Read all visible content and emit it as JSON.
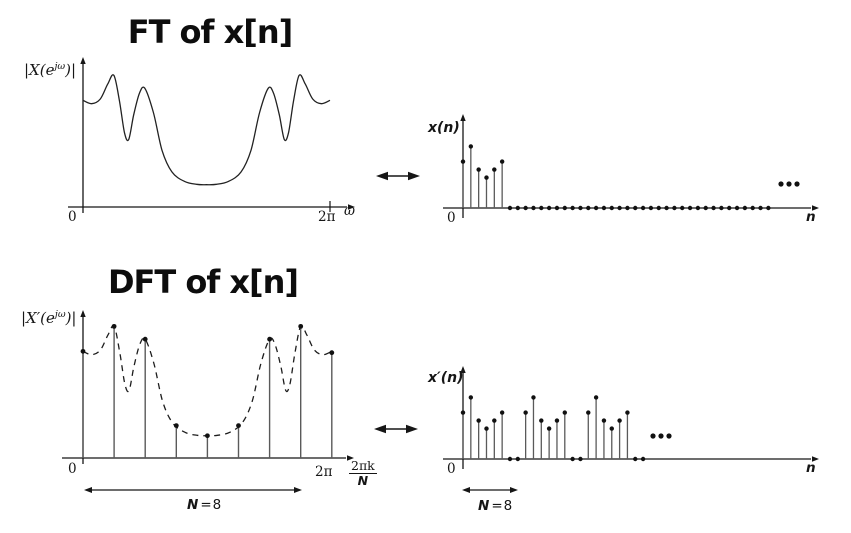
{
  "titles": {
    "ft": "FT of x[n]",
    "dft": "DFT of x[n]"
  },
  "labels": {
    "zero": "0",
    "two_pi": "2π",
    "omega": "ω",
    "n": "n",
    "ft_ylabel_pre": "|X(e",
    "dft_ylabel_pre": "|X′(e",
    "ylabel_sup": "jω",
    "ylabel_post": ")|",
    "xn": "x(n)",
    "xpn": "x′(n)",
    "frac_num": "2πk",
    "frac_den": "N",
    "n_symbol": "N",
    "n_equals": "=8"
  },
  "colors": {
    "ink": "#161616",
    "stem": "#5a5a5a",
    "dot": "#111111",
    "background": "#ffffff"
  },
  "chart_data": [
    {
      "id": "ft",
      "type": "line",
      "title": "FT of x[n]",
      "ylabel": "|X(e^jω)|",
      "xlabel": "ω",
      "x_range": [
        0,
        "2π"
      ],
      "x_ticks": [
        "0",
        "2π"
      ],
      "grid": false,
      "curve_x_normalized_0_to_2pi": true,
      "curve": [
        [
          0,
          0.79
        ],
        [
          0.035,
          0.765
        ],
        [
          0.07,
          0.8
        ],
        [
          0.1,
          0.91
        ],
        [
          0.125,
          0.975
        ],
        [
          0.148,
          0.78
        ],
        [
          0.168,
          0.55
        ],
        [
          0.185,
          0.5
        ],
        [
          0.205,
          0.68
        ],
        [
          0.228,
          0.84
        ],
        [
          0.25,
          0.88
        ],
        [
          0.285,
          0.7
        ],
        [
          0.32,
          0.42
        ],
        [
          0.36,
          0.26
        ],
        [
          0.41,
          0.19
        ],
        [
          0.46,
          0.168
        ],
        [
          0.5,
          0.165
        ],
        [
          0.54,
          0.168
        ],
        [
          0.59,
          0.19
        ],
        [
          0.64,
          0.26
        ],
        [
          0.68,
          0.42
        ],
        [
          0.715,
          0.7
        ],
        [
          0.75,
          0.88
        ],
        [
          0.772,
          0.84
        ],
        [
          0.795,
          0.68
        ],
        [
          0.815,
          0.5
        ],
        [
          0.832,
          0.55
        ],
        [
          0.852,
          0.78
        ],
        [
          0.875,
          0.975
        ],
        [
          0.9,
          0.91
        ],
        [
          0.93,
          0.8
        ],
        [
          0.965,
          0.765
        ],
        [
          1,
          0.79
        ]
      ]
    },
    {
      "id": "xn",
      "type": "stem",
      "ylabel": "x(n)",
      "xlabel": "n",
      "x_ticks": [
        "0"
      ],
      "values": [
        0.58,
        0.77,
        0.48,
        0.38,
        0.48,
        0.58
      ],
      "zero_samples": {
        "from_n": 6,
        "count": 34
      },
      "ellipsis": true
    },
    {
      "id": "dft",
      "type": "stem-with-dashed-envelope",
      "title": "DFT of x[n]",
      "ylabel": "|X′(e^jω)|",
      "xlabel": "2πk/N",
      "x_ticks": [
        "0",
        "2π"
      ],
      "N": 8,
      "k": [
        0,
        1,
        2,
        3,
        4,
        5,
        6,
        7,
        8
      ],
      "k_values": [
        0.79,
        0.975,
        0.88,
        0.24,
        0.165,
        0.24,
        0.88,
        0.975,
        0.78
      ],
      "envelope": "ft",
      "span_label": "N=8",
      "span_samples": [
        0,
        7
      ]
    },
    {
      "id": "xpn",
      "type": "stem",
      "ylabel": "x′(n)",
      "xlabel": "n",
      "x_ticks": [
        "0"
      ],
      "period": 8,
      "values": [
        0.58,
        0.77,
        0.48,
        0.38,
        0.48,
        0.58,
        0,
        0,
        0.58,
        0.77,
        0.48,
        0.38,
        0.48,
        0.58,
        0,
        0,
        0.58,
        0.77,
        0.48,
        0.38,
        0.48,
        0.58,
        0,
        0
      ],
      "ellipsis": true,
      "span_label": "N=8",
      "span_samples": [
        0,
        7
      ]
    }
  ]
}
